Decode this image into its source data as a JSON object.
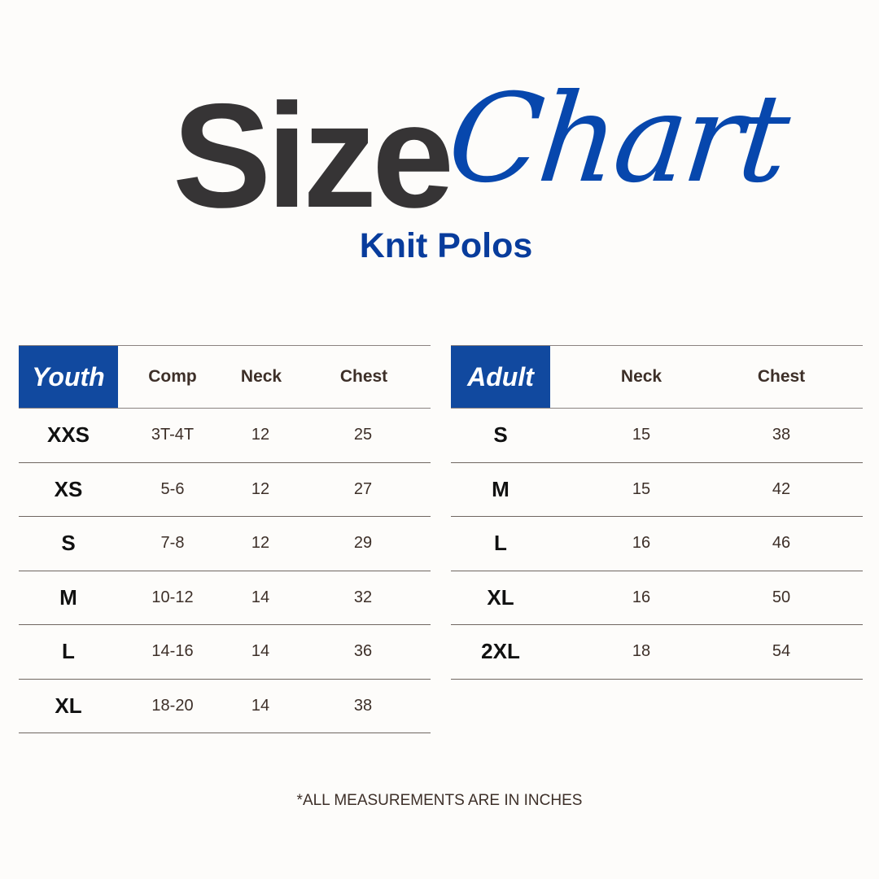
{
  "title": {
    "word1": "Size",
    "word2": "Chart",
    "subtitle": "Knit Polos"
  },
  "colors": {
    "accent": "#11499f",
    "title_dark": "#363435",
    "script_blue": "#0747ad",
    "text": "#3d2f28"
  },
  "youth": {
    "label": "Youth",
    "headers": [
      "Comp",
      "Neck",
      "Chest"
    ],
    "rows": [
      [
        "XXS",
        "3T-4T",
        "12",
        "25"
      ],
      [
        "XS",
        "5-6",
        "12",
        "27"
      ],
      [
        "S",
        "7-8",
        "12",
        "29"
      ],
      [
        "M",
        "10-12",
        "14",
        "32"
      ],
      [
        "L",
        "14-16",
        "14",
        "36"
      ],
      [
        "XL",
        "18-20",
        "14",
        "38"
      ]
    ]
  },
  "adult": {
    "label": "Adult",
    "headers": [
      "Neck",
      "Chest"
    ],
    "rows": [
      [
        "S",
        "15",
        "38"
      ],
      [
        "M",
        "15",
        "42"
      ],
      [
        "L",
        "16",
        "46"
      ],
      [
        "XL",
        "16",
        "50"
      ],
      [
        "2XL",
        "18",
        "54"
      ]
    ]
  },
  "footer": "*ALL MEASUREMENTS ARE IN INCHES"
}
